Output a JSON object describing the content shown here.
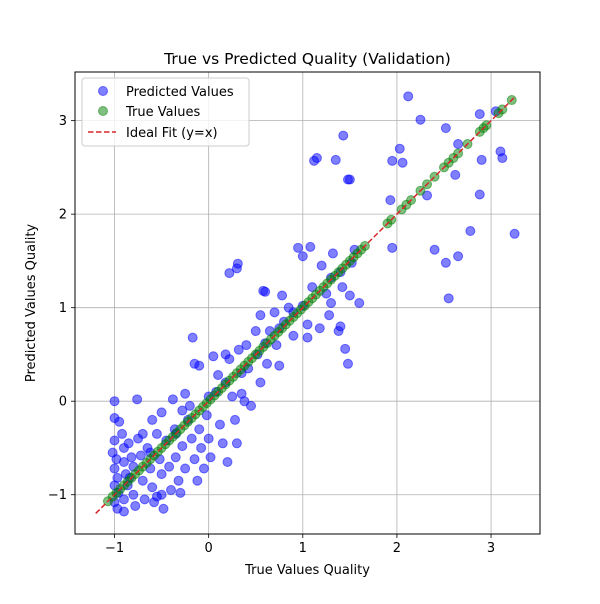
{
  "chart_data": {
    "type": "scatter",
    "title": "True vs Predicted Quality (Validation)",
    "xlabel": "True Values Quality",
    "ylabel": "Predicted Values Quality",
    "xlim": [
      -1.42,
      3.52
    ],
    "ylim": [
      -1.42,
      3.52
    ],
    "xticks": [
      -1,
      0,
      1,
      2,
      3
    ],
    "yticks": [
      -1,
      0,
      1,
      2,
      3
    ],
    "tick_labels": [
      "−1",
      "0",
      "1",
      "2",
      "3"
    ],
    "grid": true,
    "legend_position": "top-left",
    "series": [
      {
        "name": "Predicted Values",
        "kind": "scatter",
        "color": "#0000ff",
        "alpha": 0.5,
        "points": [
          [
            -1.0,
            0.0
          ],
          [
            -1.0,
            -0.18
          ],
          [
            -0.95,
            -0.22
          ],
          [
            -1.0,
            -0.42
          ],
          [
            -1.02,
            -0.55
          ],
          [
            -0.98,
            -0.62
          ],
          [
            -1.0,
            -0.72
          ],
          [
            -0.97,
            -0.82
          ],
          [
            -1.0,
            -0.9
          ],
          [
            -0.96,
            -0.98
          ],
          [
            -1.0,
            -1.08
          ],
          [
            -0.97,
            -1.15
          ],
          [
            -0.92,
            -0.35
          ],
          [
            -0.9,
            -0.5
          ],
          [
            -0.9,
            -0.65
          ],
          [
            -0.88,
            -0.78
          ],
          [
            -0.86,
            -0.9
          ],
          [
            -0.9,
            -1.05
          ],
          [
            -0.9,
            -1.18
          ],
          [
            -0.85,
            -0.45
          ],
          [
            -0.82,
            -0.6
          ],
          [
            -0.8,
            -0.7
          ],
          [
            -0.84,
            -0.82
          ],
          [
            -0.8,
            -1.0
          ],
          [
            -0.78,
            -1.12
          ],
          [
            -0.76,
            0.02
          ],
          [
            -0.75,
            -0.4
          ],
          [
            -0.72,
            -0.58
          ],
          [
            -0.7,
            -0.85
          ],
          [
            -0.68,
            -1.05
          ],
          [
            -0.65,
            -0.5
          ],
          [
            -0.62,
            -0.72
          ],
          [
            -0.6,
            -0.92
          ],
          [
            -0.58,
            -1.08
          ],
          [
            -0.55,
            -0.35
          ],
          [
            -0.52,
            -0.62
          ],
          [
            -0.5,
            -0.78
          ],
          [
            -0.5,
            -1.0
          ],
          [
            -0.48,
            -1.15
          ],
          [
            -0.45,
            -0.42
          ],
          [
            -0.42,
            -0.7
          ],
          [
            -0.4,
            -0.95
          ],
          [
            -0.38,
            0.02
          ],
          [
            -0.36,
            -0.3
          ],
          [
            -0.35,
            -0.6
          ],
          [
            -0.32,
            -0.85
          ],
          [
            -0.28,
            -0.48
          ],
          [
            -0.25,
            -0.72
          ],
          [
            -0.22,
            -0.2
          ],
          [
            -0.5,
            -0.12
          ],
          [
            -0.2,
            -0.05
          ],
          [
            -0.18,
            -0.4
          ],
          [
            -0.15,
            -0.62
          ],
          [
            -0.12,
            -0.85
          ],
          [
            -0.1,
            -0.3
          ],
          [
            -0.08,
            -0.5
          ],
          [
            -0.05,
            -0.72
          ],
          [
            -0.02,
            -0.15
          ],
          [
            0.0,
            -0.4
          ],
          [
            0.02,
            -0.6
          ],
          [
            0.05,
            0.48
          ],
          [
            0.08,
            0.1
          ],
          [
            0.12,
            -0.25
          ],
          [
            0.15,
            -0.45
          ],
          [
            0.18,
            0.2
          ],
          [
            0.2,
            -0.65
          ],
          [
            0.22,
            0.45
          ],
          [
            0.25,
            0.05
          ],
          [
            0.28,
            -0.2
          ],
          [
            0.3,
            -0.45
          ],
          [
            -0.15,
            0.4
          ],
          [
            -0.1,
            0.38
          ],
          [
            -0.17,
            0.68
          ],
          [
            0.22,
            1.37
          ],
          [
            0.3,
            1.42
          ],
          [
            0.31,
            1.47
          ],
          [
            0.32,
            0.55
          ],
          [
            0.35,
            0.3
          ],
          [
            0.38,
            0.0
          ],
          [
            0.4,
            0.6
          ],
          [
            0.42,
            0.35
          ],
          [
            0.45,
            -0.05
          ],
          [
            0.5,
            0.75
          ],
          [
            0.52,
            0.5
          ],
          [
            0.55,
            0.2
          ],
          [
            0.55,
            0.92
          ],
          [
            0.58,
            1.18
          ],
          [
            0.6,
            1.17
          ],
          [
            0.62,
            0.4
          ],
          [
            0.65,
            0.75
          ],
          [
            0.7,
            0.95
          ],
          [
            0.72,
            0.6
          ],
          [
            0.75,
            0.38
          ],
          [
            0.78,
            1.13
          ],
          [
            0.8,
            0.85
          ],
          [
            0.85,
            1.0
          ],
          [
            0.9,
            0.7
          ],
          [
            0.95,
            1.64
          ],
          [
            1.0,
            1.55
          ],
          [
            1.05,
            0.82
          ],
          [
            1.05,
            0.68
          ],
          [
            1.08,
            1.65
          ],
          [
            1.1,
            1.22
          ],
          [
            1.12,
            2.57
          ],
          [
            1.15,
            2.6
          ],
          [
            1.18,
            0.78
          ],
          [
            1.2,
            1.45
          ],
          [
            1.25,
            1.15
          ],
          [
            1.28,
            0.92
          ],
          [
            1.3,
            1.05
          ],
          [
            1.32,
            1.58
          ],
          [
            1.35,
            2.58
          ],
          [
            1.38,
            0.75
          ],
          [
            1.4,
            0.8
          ],
          [
            1.42,
            1.22
          ],
          [
            1.43,
            2.84
          ],
          [
            1.45,
            0.56
          ],
          [
            1.48,
            2.37
          ],
          [
            1.5,
            2.37
          ],
          [
            1.5,
            1.13
          ],
          [
            1.52,
            1.48
          ],
          [
            1.55,
            1.62
          ],
          [
            1.6,
            1.05
          ],
          [
            1.48,
            0.4
          ],
          [
            1.95,
            1.64
          ],
          [
            1.95,
            2.57
          ],
          [
            1.93,
            2.15
          ],
          [
            2.03,
            2.7
          ],
          [
            2.06,
            2.55
          ],
          [
            2.12,
            3.26
          ],
          [
            2.25,
            3.01
          ],
          [
            2.32,
            2.2
          ],
          [
            2.4,
            1.62
          ],
          [
            2.52,
            2.92
          ],
          [
            2.52,
            1.48
          ],
          [
            2.55,
            1.1
          ],
          [
            2.62,
            2.42
          ],
          [
            2.65,
            2.75
          ],
          [
            2.65,
            1.55
          ],
          [
            2.78,
            1.82
          ],
          [
            2.88,
            3.07
          ],
          [
            2.9,
            2.58
          ],
          [
            2.88,
            2.21
          ],
          [
            3.1,
            2.67
          ],
          [
            3.12,
            2.6
          ],
          [
            3.25,
            1.79
          ],
          [
            3.05,
            3.1
          ],
          [
            -0.25,
            0.08
          ],
          [
            -0.28,
            -0.1
          ],
          [
            -0.6,
            -0.2
          ],
          [
            -0.62,
            -0.55
          ],
          [
            -0.7,
            -0.35
          ],
          [
            -0.55,
            -1.02
          ],
          [
            -0.3,
            -0.98
          ],
          [
            0.1,
            0.28
          ],
          [
            0.18,
            0.5
          ],
          [
            0.35,
            0.08
          ],
          [
            0.6,
            0.62
          ],
          [
            0.75,
            0.78
          ],
          [
            0.9,
            0.95
          ],
          [
            1.0,
            1.02
          ],
          [
            1.3,
            1.32
          ],
          [
            1.4,
            1.38
          ],
          [
            0.0,
            0.05
          ],
          [
            -0.35,
            -0.35
          ]
        ]
      },
      {
        "name": "True Values",
        "kind": "scatter",
        "color": "#008000",
        "alpha": 0.5,
        "diagonal_points": [
          -1.07,
          -1.02,
          -0.98,
          -0.94,
          -0.9,
          -0.86,
          -0.82,
          -0.78,
          -0.74,
          -0.7,
          -0.66,
          -0.62,
          -0.58,
          -0.54,
          -0.5,
          -0.46,
          -0.42,
          -0.38,
          -0.34,
          -0.3,
          -0.26,
          -0.22,
          -0.18,
          -0.14,
          -0.1,
          -0.06,
          -0.02,
          0.02,
          0.06,
          0.1,
          0.14,
          0.18,
          0.22,
          0.26,
          0.3,
          0.34,
          0.38,
          0.42,
          0.46,
          0.5,
          0.54,
          0.58,
          0.62,
          0.66,
          0.7,
          0.74,
          0.78,
          0.82,
          0.86,
          0.9,
          0.94,
          0.98,
          1.02,
          1.06,
          1.1,
          1.14,
          1.18,
          1.22,
          1.26,
          1.3,
          1.34,
          1.38,
          1.42,
          1.46,
          1.5,
          1.54,
          1.58,
          1.62,
          1.66,
          1.9,
          1.94,
          2.05,
          2.1,
          2.15,
          2.25,
          2.32,
          2.4,
          2.5,
          2.55,
          2.6,
          2.65,
          2.75,
          2.88,
          2.92,
          2.95,
          3.08,
          3.12,
          3.22
        ]
      },
      {
        "name": "Ideal Fit (y=x)",
        "kind": "line",
        "color": "#d62728",
        "dashed": true,
        "x": [
          -1.2,
          3.25
        ],
        "y": [
          -1.2,
          3.25
        ]
      }
    ]
  }
}
